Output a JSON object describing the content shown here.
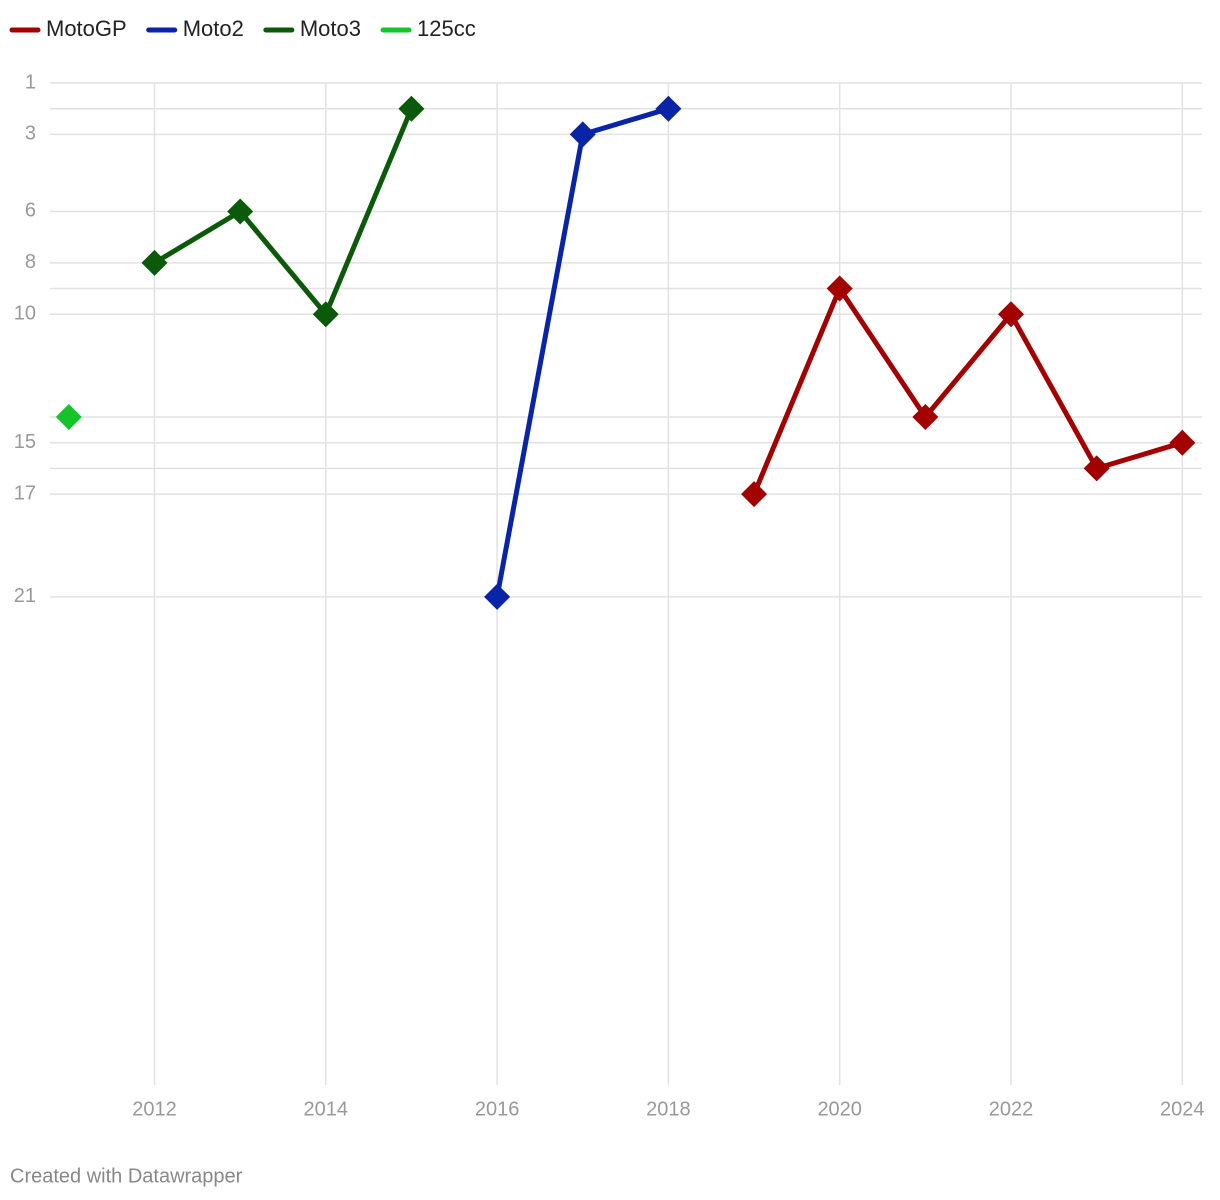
{
  "chart_data": {
    "type": "line",
    "x": [
      2011,
      2012,
      2013,
      2014,
      2015,
      2016,
      2017,
      2018,
      2019,
      2020,
      2021,
      2022,
      2023,
      2024
    ],
    "series": [
      {
        "name": "MotoGP",
        "color": "#a30000",
        "values": [
          null,
          null,
          null,
          null,
          null,
          null,
          null,
          null,
          17,
          9,
          14,
          10,
          16,
          15
        ]
      },
      {
        "name": "Moto2",
        "color": "#0a24a8",
        "values": [
          null,
          null,
          null,
          null,
          null,
          21,
          3,
          2,
          null,
          null,
          null,
          null,
          null,
          null
        ]
      },
      {
        "name": "Moto3",
        "color": "#0a5a0a",
        "values": [
          null,
          8,
          6,
          10,
          2,
          null,
          null,
          null,
          null,
          null,
          null,
          null,
          null,
          null
        ]
      },
      {
        "name": "125cc",
        "color": "#14c42a",
        "values": [
          14,
          null,
          null,
          null,
          null,
          null,
          null,
          null,
          null,
          null,
          null,
          null,
          null,
          null
        ]
      }
    ],
    "xlim": [
      2010.78,
      2024.23
    ],
    "xticks": [
      2012,
      2014,
      2016,
      2018,
      2020,
      2022,
      2024
    ],
    "ylim": [
      1,
      40
    ],
    "y_inverted": true,
    "yticks": [
      1,
      3,
      6,
      8,
      10,
      15,
      17,
      21
    ],
    "minor_gridlines": [
      2,
      9,
      14,
      16
    ],
    "grid": true,
    "legend": "top-left",
    "footer": "Created with Datawrapper"
  }
}
